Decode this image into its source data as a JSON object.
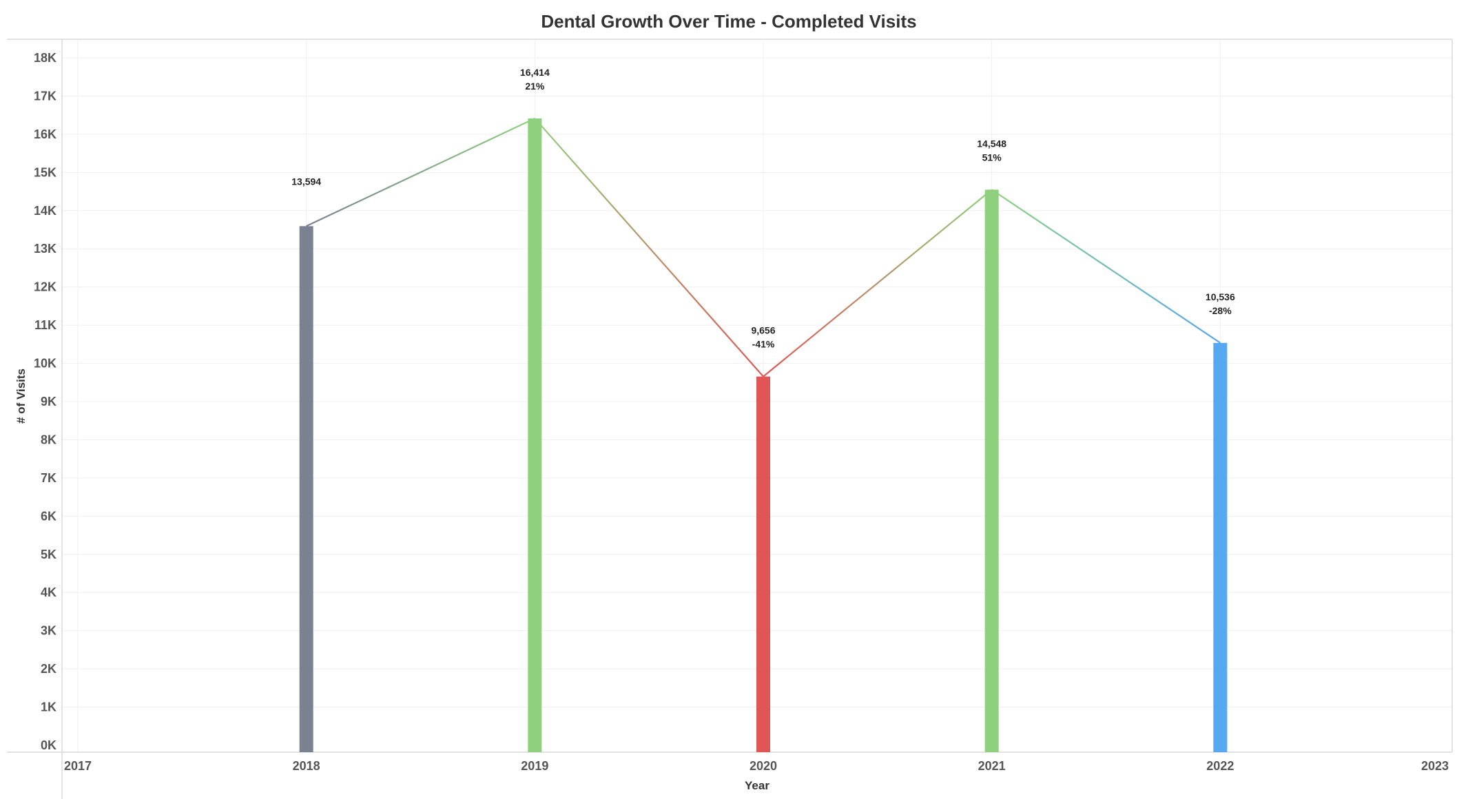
{
  "chart_data": {
    "type": "bar",
    "title": "Dental Growth Over Time - Completed Visits",
    "xlabel": "Year",
    "ylabel": "# of Visits",
    "x_ticks": [
      "2017",
      "2018",
      "2019",
      "2020",
      "2021",
      "2022",
      "2023"
    ],
    "xlim": [
      2017,
      2023
    ],
    "y_ticks": [
      "0K",
      "1K",
      "2K",
      "3K",
      "4K",
      "5K",
      "6K",
      "7K",
      "8K",
      "9K",
      "10K",
      "11K",
      "12K",
      "13K",
      "14K",
      "15K",
      "16K",
      "17K",
      "18K"
    ],
    "ylim": [
      0,
      18500
    ],
    "grid": true,
    "legend": "none",
    "categories": [
      "2018",
      "2019",
      "2020",
      "2021",
      "2022"
    ],
    "values": [
      13594,
      16414,
      9656,
      14548,
      10536
    ],
    "growth_labels": [
      "",
      "21%",
      "-41%",
      "51%",
      "-28%"
    ],
    "value_labels": [
      "13,594",
      "16,414",
      "9,656",
      "14,548",
      "10,536"
    ],
    "bar_colors": [
      "#7a8291",
      "#8ed07e",
      "#e05656",
      "#8ed07e",
      "#56a8f0"
    ],
    "connecting_line": true
  }
}
